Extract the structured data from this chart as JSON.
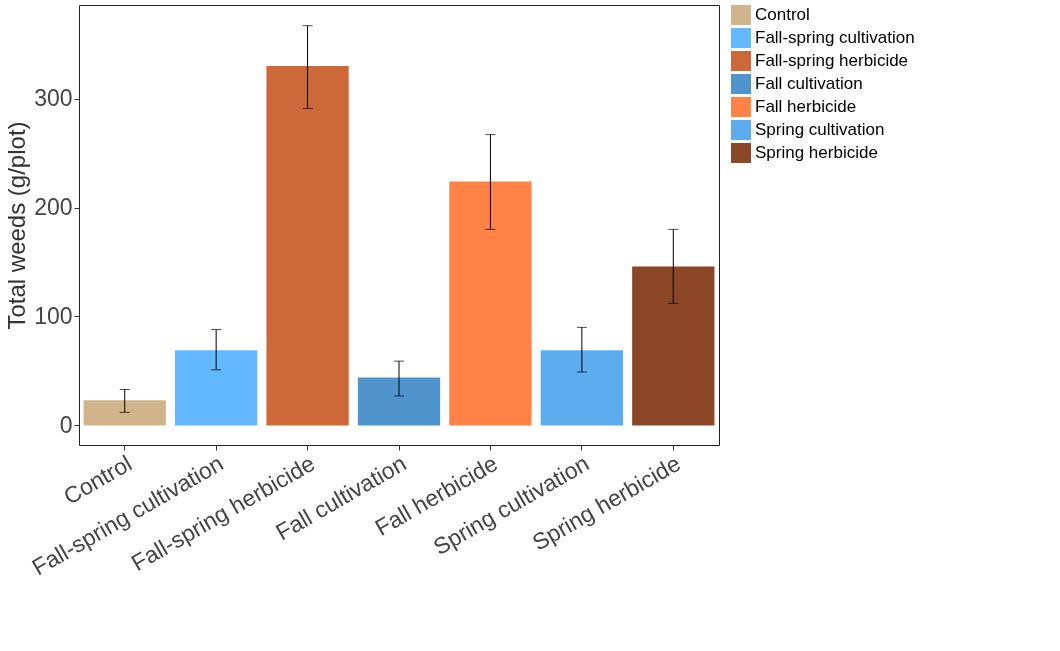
{
  "chart_data": {
    "type": "bar",
    "ylabel": "Total weeds (g/plot)",
    "categories": [
      "Control",
      "Fall-spring cultivation",
      "Fall-spring herbicide",
      "Fall cultivation",
      "Fall herbicide",
      "Spring cultivation",
      "Spring herbicide"
    ],
    "series": [
      {
        "name": "Control",
        "color": "#d2b48c",
        "values": [
          23,
          null,
          null,
          null,
          null,
          null,
          null
        ],
        "errors": [
          [
            12,
            33
          ],
          null,
          null,
          null,
          null,
          null,
          null
        ]
      },
      {
        "name": "Fall-spring cultivation",
        "color": "#63b8ff",
        "values": [
          null,
          69,
          null,
          null,
          null,
          null,
          null
        ],
        "errors": [
          null,
          [
            51,
            88
          ],
          null,
          null,
          null,
          null,
          null
        ]
      },
      {
        "name": "Fall-spring herbicide",
        "color": "#cd6839",
        "values": [
          null,
          null,
          330,
          null,
          null,
          null,
          null
        ],
        "errors": [
          null,
          null,
          [
            291,
            367
          ],
          null,
          null,
          null,
          null
        ]
      },
      {
        "name": "Fall cultivation",
        "color": "#4f94cd",
        "values": [
          null,
          null,
          null,
          44,
          null,
          null,
          null
        ],
        "errors": [
          null,
          null,
          null,
          [
            27,
            59
          ],
          null,
          null,
          null
        ]
      },
      {
        "name": "Fall herbicide",
        "color": "#ff8247",
        "values": [
          null,
          null,
          null,
          null,
          224,
          null,
          null
        ],
        "errors": [
          null,
          null,
          null,
          null,
          [
            180,
            267
          ],
          null,
          null
        ]
      },
      {
        "name": "Spring cultivation",
        "color": "#5cacee",
        "values": [
          null,
          null,
          null,
          null,
          null,
          69,
          null
        ],
        "errors": [
          null,
          null,
          null,
          null,
          null,
          [
            49,
            90
          ],
          null
        ]
      },
      {
        "name": "Spring herbicide",
        "color": "#8b4726",
        "values": [
          null,
          null,
          null,
          null,
          null,
          null,
          146
        ],
        "errors": [
          null,
          null,
          null,
          null,
          null,
          null,
          [
            112,
            180
          ]
        ]
      }
    ],
    "ylim": [
      -18,
      386
    ],
    "yticks": [
      0,
      100,
      200,
      300
    ],
    "grid": false,
    "legend": "right"
  }
}
